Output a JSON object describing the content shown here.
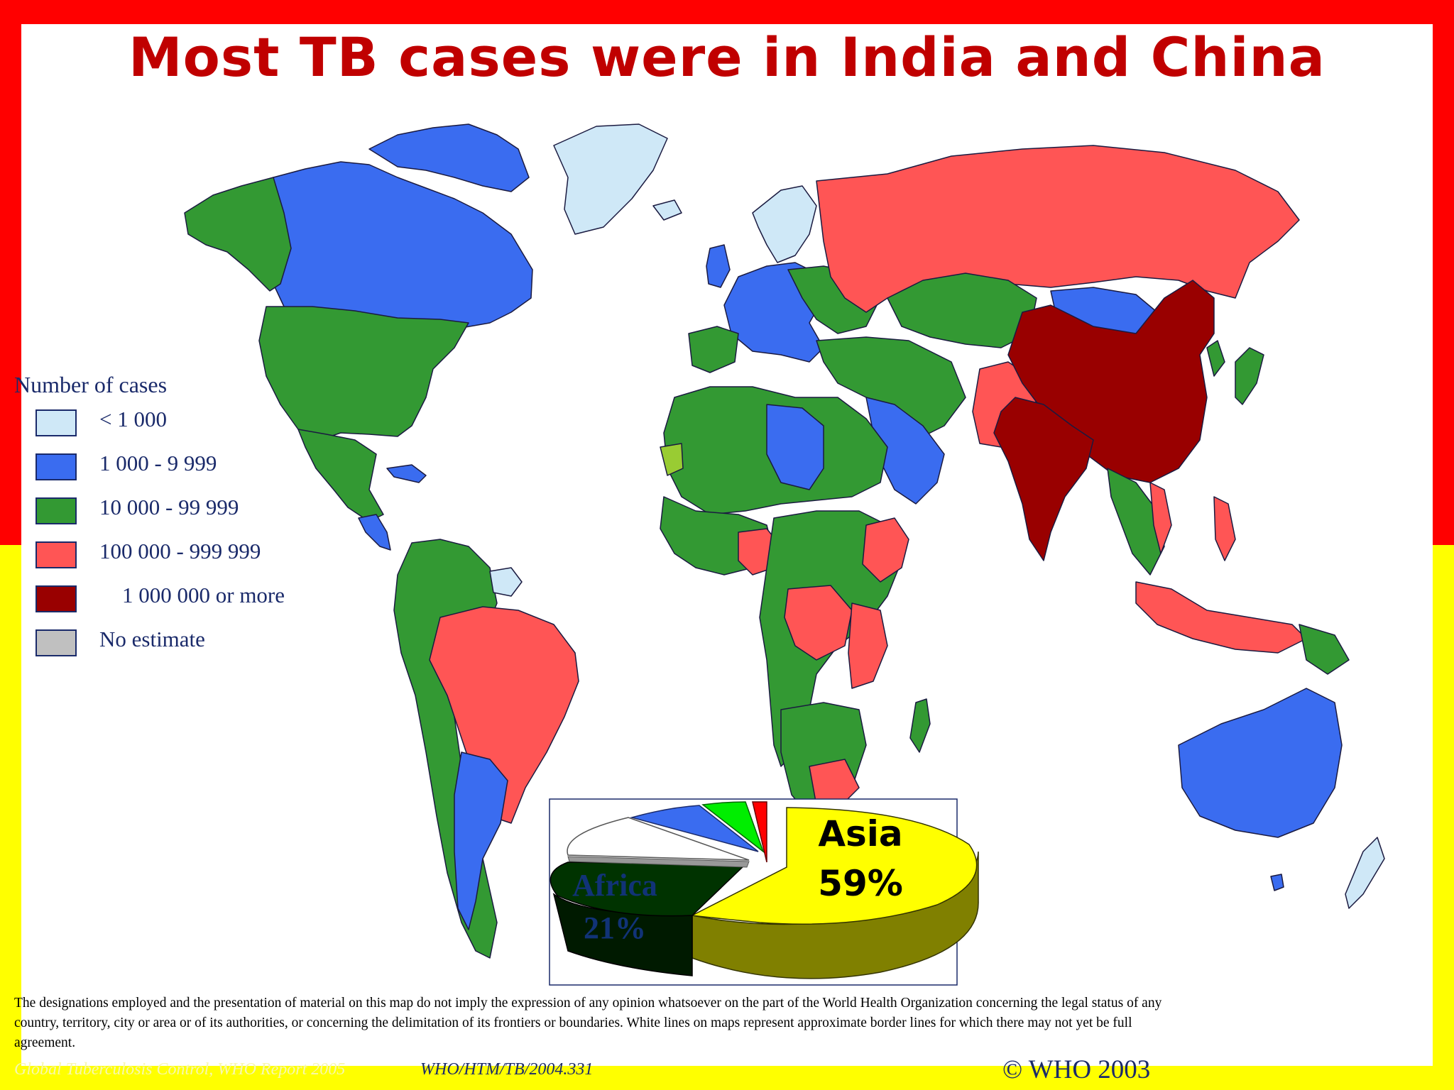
{
  "title": "Most TB cases were in India and China",
  "legend": {
    "title": "Number of cases",
    "items": [
      {
        "label": "< 1 000",
        "color": "#cfe8f7"
      },
      {
        "label": "1 000 - 9 999",
        "color": "#3a6cf0"
      },
      {
        "label": "10 000 - 99 999",
        "color": "#339933"
      },
      {
        "label": "100 000 - 999 999",
        "color": "#ff5555"
      },
      {
        "label": "1 000 000 or more",
        "color": "#990000"
      },
      {
        "label": "No estimate",
        "color": "#c0c0c0"
      }
    ]
  },
  "pie": {
    "asia_label": "Asia",
    "asia_percent": "59%",
    "africa_label": "Africa",
    "africa_percent": "21%",
    "colors": {
      "asia": "#ffff00",
      "africa": "#003300",
      "europe": "#ffffff",
      "americas": "#3a6cf0",
      "eastern_med": "#00ee00",
      "western_pacific": "#ff0000"
    }
  },
  "disclaimer": "The designations employed and the presentation of material on this map do not imply the expression of any opinion whatsoever on the part of the World Health Organization concerning the legal status of any country, territory, city or area or of its authorities, or concerning the delimitation of its frontiers or boundaries. White lines on maps represent approximate border lines for which there may not yet be full agreement.",
  "footer": {
    "source": "Global Tuberculosis Control, WHO Report 2005",
    "code": "WHO/HTM/TB/2004.331",
    "copyright": "© WHO 2003"
  }
}
